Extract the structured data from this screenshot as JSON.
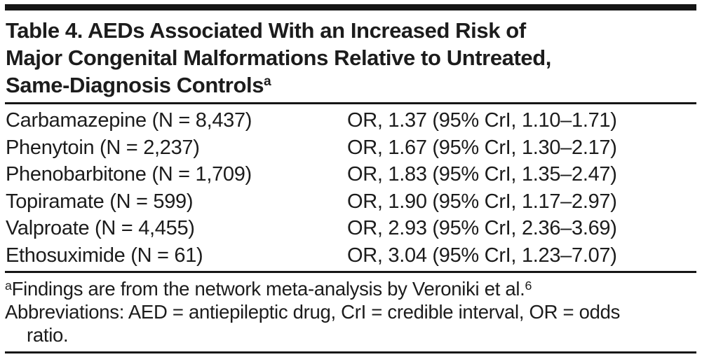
{
  "colors": {
    "ink": "#161616",
    "background": "#ffffff"
  },
  "table": {
    "title_lines": [
      "Table 4. AEDs Associated With an Increased Risk of",
      "Major Congenital Malformations Relative to Untreated,",
      "Same-Diagnosis Controls"
    ],
    "title_superscript": "a",
    "title_full": "Table 4. AEDs Associated With an Increased Risk of Major Congenital Malformations Relative to Untreated, Same-Diagnosis Controls",
    "rows": [
      {
        "drug": "Carbamazepine (N = 8,437)",
        "value": "OR, 1.37 (95% CrI, 1.10–1.71)"
      },
      {
        "drug": "Phenytoin (N = 2,237)",
        "value": "OR, 1.67 (95% CrI, 1.30–2.17)"
      },
      {
        "drug": "Phenobarbitone (N = 1,709)",
        "value": "OR, 1.83 (95% CrI, 1.35–2.47)"
      },
      {
        "drug": "Topiramate (N = 599)",
        "value": "OR, 1.90 (95% CrI, 1.17–2.97)"
      },
      {
        "drug": "Valproate (N = 4,455)",
        "value": "OR, 2.93 (95% CrI, 2.36–3.69)"
      },
      {
        "drug": "Ethosuximide (N = 61)",
        "value": "OR, 3.04 (95% CrI, 1.23–7.07)"
      }
    ],
    "footnotes": {
      "marker": "a",
      "finding": "Findings are from the network meta-analysis by Veroniki et al.",
      "finding_ref": "6",
      "abbreviations_line1": "Abbreviations: AED = antiepileptic drug, CrI = credible interval, OR = odds",
      "abbreviations_line2": "ratio."
    }
  }
}
